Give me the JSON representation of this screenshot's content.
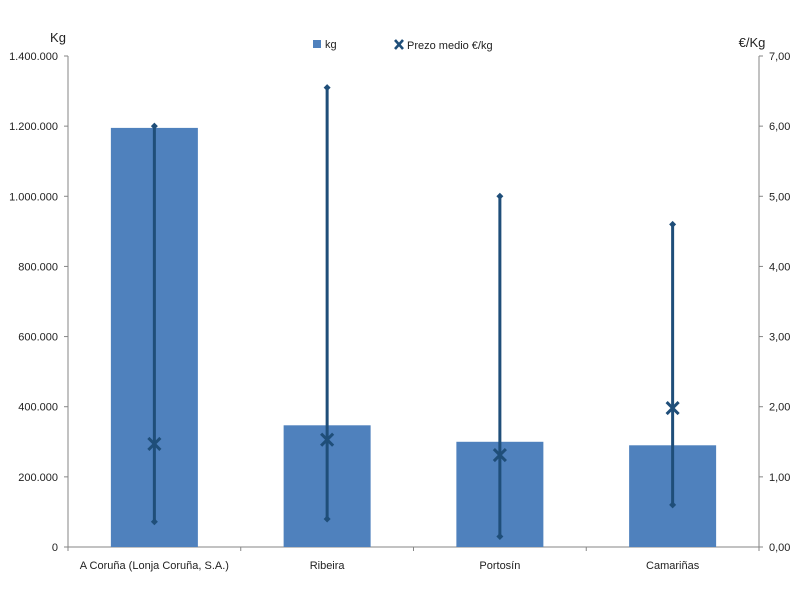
{
  "chart_data": {
    "type": "bar",
    "categories": [
      "A Coruña (Lonja Coruña, S.A.)",
      "Ribeira",
      "Portosín",
      "Camariñas"
    ],
    "series": [
      {
        "name": "kg",
        "type": "bar",
        "axis": "left",
        "values": [
          1195000,
          347000,
          300000,
          290000
        ]
      },
      {
        "name": "Prezo medio €/kg",
        "type": "range-marker",
        "axis": "right",
        "avg": [
          1.47,
          1.53,
          1.31,
          1.98
        ],
        "min": [
          0.36,
          0.4,
          0.15,
          0.6
        ],
        "max": [
          6.0,
          6.55,
          5.0,
          4.6
        ]
      }
    ],
    "y_left": {
      "label": "Kg",
      "range": [
        0,
        1400000
      ],
      "ticks": [
        "0",
        "200.000",
        "400.000",
        "600.000",
        "800.000",
        "1.000.000",
        "1.200.000",
        "1.400.000"
      ]
    },
    "y_right": {
      "label": "€/Kg",
      "range": [
        0,
        7
      ],
      "ticks": [
        "0,00",
        "1,00",
        "2,00",
        "3,00",
        "4,00",
        "5,00",
        "6,00",
        "7,00"
      ]
    },
    "legend": {
      "placement": "top-center",
      "items": [
        "kg",
        "Prezo medio €/kg"
      ]
    },
    "grid": false,
    "colors": {
      "bar": "#4f81bd",
      "marker": "#1f4e79",
      "axis": "#868686"
    }
  }
}
